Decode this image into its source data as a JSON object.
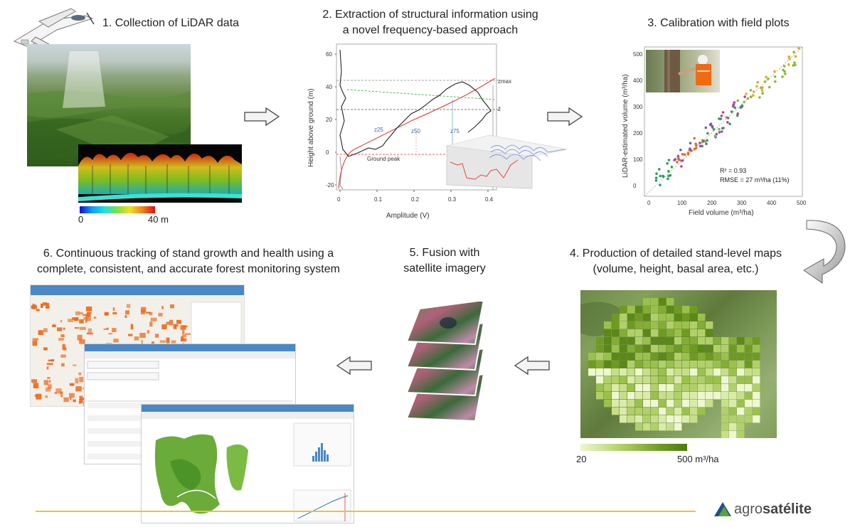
{
  "steps": [
    {
      "id": 1,
      "title": "1. Collection of LiDAR data"
    },
    {
      "id": 2,
      "title_line1": "2. Extraction of structural information using",
      "title_line2": "a novel frequency-based approach"
    },
    {
      "id": 3,
      "title": "3. Calibration with field plots"
    },
    {
      "id": 4,
      "title_line1": "4. Production of detailed stand-level maps",
      "title_line2": "(volume, height, basal area, etc.)"
    },
    {
      "id": 5,
      "title_line1": "5. Fusion with",
      "title_line2": "satellite imagery"
    },
    {
      "id": 6,
      "title_line1": "6. Continuous tracking of stand growth and health using a",
      "title_line2": "complete, consistent, and accurate forest monitoring system"
    }
  ],
  "lidar_scale": {
    "min": "0",
    "max": "40 m"
  },
  "waveform": {
    "ylabel": "Height above ground (m)",
    "xlabel": "Amplitude (V)",
    "yticks": [
      "-20",
      "0",
      "20",
      "40",
      "60"
    ],
    "xticks": [
      "0",
      "0.1",
      "0.2",
      "0.3",
      "0.4"
    ],
    "labels": {
      "zmax": "zmax",
      "zbar": "z̄",
      "z25": "z25",
      "z50": "z50",
      "z75": "z75",
      "ground": "Ground peak"
    }
  },
  "calibration": {
    "ylabel": "LiDAR-estimated volume (m³/ha)",
    "xlabel": "Field volume (m³/ha)",
    "ticks": [
      "0",
      "100",
      "200",
      "300",
      "400",
      "500"
    ],
    "r2": "R² = 0.93",
    "rmse": "RMSE = 27 m³/ha (11%)"
  },
  "map_scale": {
    "min": "20",
    "max": "500 m³/ha"
  },
  "logo": {
    "prefix": "agro",
    "suffix": "satélite"
  },
  "colors": {
    "accent": "#e8c53a",
    "blue": "#4a88c7",
    "green_dark": "#4d7a12",
    "green_light": "#e9f3c8",
    "orange": "#ee7a2a"
  }
}
